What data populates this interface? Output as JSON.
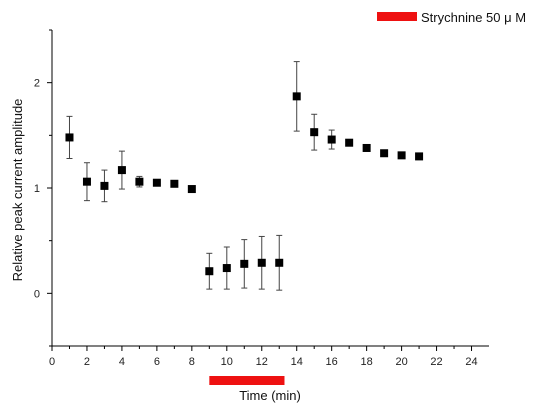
{
  "chart_data": {
    "type": "scatter",
    "title": "",
    "xlabel": "Time (min)",
    "ylabel": "Relative peak current amplitude",
    "xlim": [
      0,
      25
    ],
    "ylim": [
      -0.5,
      2.5
    ],
    "x_ticks": [
      "0",
      "2",
      "4",
      "6",
      "8",
      "10",
      "12",
      "14",
      "16",
      "18",
      "20",
      "22",
      "24"
    ],
    "x_tick_values": [
      0,
      2,
      4,
      6,
      8,
      10,
      12,
      14,
      16,
      18,
      20,
      22,
      24
    ],
    "y_ticks": [
      "0",
      "1",
      "2"
    ],
    "y_tick_values": [
      0,
      1,
      2
    ],
    "grid": false,
    "legend": {
      "label": "Strychnine 50 μ M",
      "placement": "top-right",
      "color": "#ee1111"
    },
    "drug_application": {
      "start": 9,
      "end": 13.3,
      "color": "#ee1111"
    },
    "marker_color": "#000000",
    "series": [
      {
        "points": [
          {
            "x": 1,
            "y": 1.48,
            "err": 0.2
          },
          {
            "x": 2,
            "y": 1.06,
            "err": 0.18
          },
          {
            "x": 3,
            "y": 1.02,
            "err": 0.15
          },
          {
            "x": 4,
            "y": 1.17,
            "err": 0.18
          },
          {
            "x": 5,
            "y": 1.06,
            "err": 0.05
          },
          {
            "x": 6,
            "y": 1.05,
            "err": 0.03
          },
          {
            "x": 7,
            "y": 1.04,
            "err": 0.03
          },
          {
            "x": 8,
            "y": 0.99,
            "err": 0.02
          },
          {
            "x": 9,
            "y": 0.21,
            "err": 0.17
          },
          {
            "x": 10,
            "y": 0.24,
            "err": 0.2
          },
          {
            "x": 11,
            "y": 0.28,
            "err": 0.23
          },
          {
            "x": 12,
            "y": 0.29,
            "err": 0.25
          },
          {
            "x": 13,
            "y": 0.29,
            "err": 0.26
          },
          {
            "x": 14,
            "y": 1.87,
            "err": 0.33
          },
          {
            "x": 15,
            "y": 1.53,
            "err": 0.17
          },
          {
            "x": 16,
            "y": 1.46,
            "err": 0.09
          },
          {
            "x": 17,
            "y": 1.43,
            "err": 0.02
          },
          {
            "x": 18,
            "y": 1.38,
            "err": 0.02
          },
          {
            "x": 19,
            "y": 1.33,
            "err": 0.02
          },
          {
            "x": 20,
            "y": 1.31,
            "err": 0.02
          },
          {
            "x": 21,
            "y": 1.3,
            "err": 0.02
          }
        ]
      }
    ]
  }
}
